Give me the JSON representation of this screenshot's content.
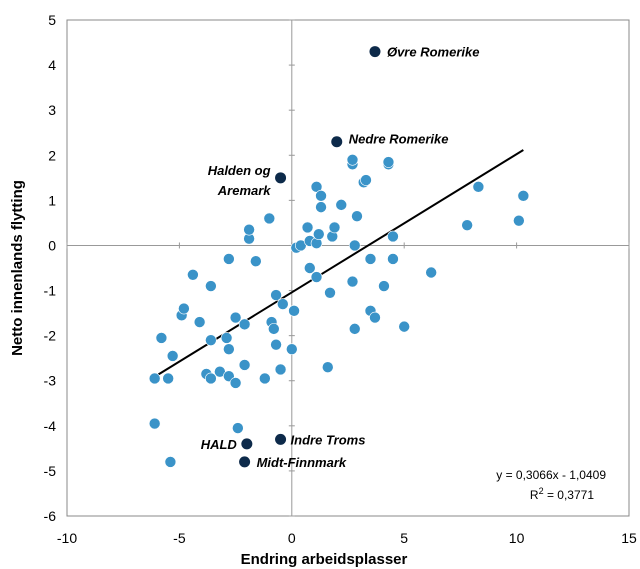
{
  "chart_data": {
    "type": "scatter",
    "xlabel": "Endring arbeidsplasser",
    "ylabel": "Netto innenlands flytting",
    "xlim": [
      -10,
      15
    ],
    "ylim": [
      -6,
      5
    ],
    "x_ticks": [
      -10,
      -5,
      0,
      5,
      10,
      15
    ],
    "y_ticks": [
      -6,
      -5,
      -4,
      -3,
      -2,
      -1,
      0,
      1,
      2,
      3,
      4,
      5
    ],
    "grid": false,
    "colors": {
      "regular": "#3a93c8",
      "highlighted": "#0d2a4a",
      "trendline": "#000000"
    },
    "points": [
      {
        "x": -6.1,
        "y": -3.95
      },
      {
        "x": -6.1,
        "y": -2.95
      },
      {
        "x": -5.8,
        "y": -2.05
      },
      {
        "x": -5.5,
        "y": -2.95
      },
      {
        "x": -5.3,
        "y": -2.45
      },
      {
        "x": -5.4,
        "y": -4.8
      },
      {
        "x": -4.9,
        "y": -1.55
      },
      {
        "x": -4.8,
        "y": -1.4
      },
      {
        "x": -4.4,
        "y": -0.65
      },
      {
        "x": -4.1,
        "y": -1.7
      },
      {
        "x": -3.8,
        "y": -2.85
      },
      {
        "x": -3.6,
        "y": -2.95
      },
      {
        "x": -3.6,
        "y": -2.1
      },
      {
        "x": -3.6,
        "y": -0.9
      },
      {
        "x": -3.2,
        "y": -2.8
      },
      {
        "x": -2.9,
        "y": -2.05
      },
      {
        "x": -2.8,
        "y": -2.3
      },
      {
        "x": -2.8,
        "y": -2.9
      },
      {
        "x": -2.8,
        "y": -0.3
      },
      {
        "x": -2.5,
        "y": -3.05
      },
      {
        "x": -2.5,
        "y": -1.6
      },
      {
        "x": -2.4,
        "y": -4.05
      },
      {
        "x": -2.1,
        "y": -2.65
      },
      {
        "x": -2.1,
        "y": -1.75
      },
      {
        "x": -1.9,
        "y": 0.15
      },
      {
        "x": -1.9,
        "y": 0.35
      },
      {
        "x": -1.6,
        "y": -0.35
      },
      {
        "x": -1.2,
        "y": -2.95
      },
      {
        "x": -1.0,
        "y": 0.6
      },
      {
        "x": -0.9,
        "y": -1.7
      },
      {
        "x": -0.8,
        "y": -1.85
      },
      {
        "x": -0.7,
        "y": -2.2
      },
      {
        "x": -0.7,
        "y": -1.1
      },
      {
        "x": -0.5,
        "y": -2.75
      },
      {
        "x": -0.4,
        "y": -1.3
      },
      {
        "x": 0.0,
        "y": -2.3
      },
      {
        "x": 0.1,
        "y": -1.45
      },
      {
        "x": 0.2,
        "y": -0.05
      },
      {
        "x": 0.4,
        "y": 0.0
      },
      {
        "x": 0.7,
        "y": 0.4
      },
      {
        "x": 0.8,
        "y": -0.5
      },
      {
        "x": 0.8,
        "y": 0.1
      },
      {
        "x": 1.1,
        "y": 0.05
      },
      {
        "x": 1.1,
        "y": -0.7
      },
      {
        "x": 1.1,
        "y": 1.3
      },
      {
        "x": 1.2,
        "y": 0.25
      },
      {
        "x": 1.3,
        "y": 0.85
      },
      {
        "x": 1.3,
        "y": 1.1
      },
      {
        "x": 1.6,
        "y": -2.7
      },
      {
        "x": 1.7,
        "y": -1.05
      },
      {
        "x": 1.8,
        "y": 0.2
      },
      {
        "x": 1.9,
        "y": 0.4
      },
      {
        "x": 2.2,
        "y": 0.9
      },
      {
        "x": 2.7,
        "y": -0.8
      },
      {
        "x": 2.7,
        "y": 1.8
      },
      {
        "x": 2.7,
        "y": 1.9
      },
      {
        "x": 2.8,
        "y": 0.0
      },
      {
        "x": 2.8,
        "y": -1.85
      },
      {
        "x": 2.9,
        "y": 0.65
      },
      {
        "x": 3.2,
        "y": 1.4
      },
      {
        "x": 3.3,
        "y": 1.45
      },
      {
        "x": 3.5,
        "y": -0.3
      },
      {
        "x": 3.5,
        "y": -1.45
      },
      {
        "x": 3.7,
        "y": -1.6
      },
      {
        "x": 4.1,
        "y": -0.9
      },
      {
        "x": 4.3,
        "y": 1.8
      },
      {
        "x": 4.3,
        "y": 1.85
      },
      {
        "x": 4.5,
        "y": 0.2
      },
      {
        "x": 4.5,
        "y": -0.3
      },
      {
        "x": 5.0,
        "y": -1.8
      },
      {
        "x": 6.2,
        "y": -0.6
      },
      {
        "x": 7.8,
        "y": 0.45
      },
      {
        "x": 8.3,
        "y": 1.3
      },
      {
        "x": 10.1,
        "y": 0.55
      },
      {
        "x": 10.3,
        "y": 1.1
      }
    ],
    "highlighted": [
      {
        "x": 3.7,
        "y": 4.3,
        "label": "Øvre Romerike"
      },
      {
        "x": 2.0,
        "y": 2.3,
        "label": "Nedre Romerike"
      },
      {
        "x": -0.5,
        "y": 1.5,
        "label": "Halden og Aremark",
        "label_lines": [
          "Halden og",
          "Aremark"
        ]
      },
      {
        "x": -2.0,
        "y": -4.4,
        "label": "HALD"
      },
      {
        "x": -0.5,
        "y": -4.3,
        "label": "Indre Troms"
      },
      {
        "x": -2.1,
        "y": -4.8,
        "label": "Midt-Finnmark"
      }
    ],
    "trendline": {
      "slope": 0.3066,
      "intercept": -1.0409,
      "x_range": [
        -6.1,
        10.3
      ]
    },
    "equation_text": "y = 0,3066x - 1,0409",
    "r2_label": "R",
    "r2_sup": "2",
    "r2_value": " = 0,3771"
  }
}
